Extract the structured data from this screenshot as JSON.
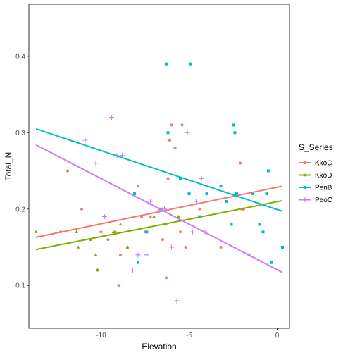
{
  "chart_data": {
    "type": "scatter",
    "xlabel": "Elevation",
    "ylabel": "Total_N",
    "xlim": [
      -14.1,
      0.7
    ],
    "ylim": [
      0.044,
      0.468
    ],
    "x_ticks": [
      -10,
      -5,
      0
    ],
    "y_ticks": [
      0.1,
      0.2,
      0.3,
      0.4
    ],
    "grid": false,
    "legend": {
      "title": "S_Series",
      "position": "right"
    },
    "series": [
      {
        "name": "KkoC",
        "color": "#F8766D",
        "marker": "circle",
        "points": [
          [
            -12.3,
            0.17
          ],
          [
            -11.9,
            0.25
          ],
          [
            -11.1,
            0.2
          ],
          [
            -10.2,
            0.12
          ],
          [
            -10.0,
            0.17
          ],
          [
            -9.6,
            0.16
          ],
          [
            -9.2,
            0.17
          ],
          [
            -9.0,
            0.1
          ],
          [
            -8.9,
            0.14
          ],
          [
            -8.5,
            0.15
          ],
          [
            -8.1,
            0.22
          ],
          [
            -7.9,
            0.23
          ],
          [
            -7.7,
            0.19
          ],
          [
            -7.5,
            0.17
          ],
          [
            -6.7,
            0.2
          ],
          [
            -6.5,
            0.16
          ],
          [
            -6.3,
            0.11
          ],
          [
            -6.2,
            0.24
          ],
          [
            -6.1,
            0.29
          ],
          [
            -5.8,
            0.28
          ],
          [
            -5.5,
            0.17
          ],
          [
            -5.4,
            0.31
          ],
          [
            -5.2,
            0.15
          ],
          [
            -4.4,
            0.2
          ],
          [
            -3.2,
            0.15
          ],
          [
            -2.1,
            0.26
          ],
          [
            -2.0,
            0.2
          ],
          [
            -1.9,
            0.2
          ],
          [
            -6.0,
            0.31
          ],
          [
            -7.2,
            0.19
          ]
        ],
        "fit": {
          "x": [
            -13.7,
            0.3
          ],
          "y": [
            0.163,
            0.23
          ]
        }
      },
      {
        "name": "KkoD",
        "color": "#7CAE00",
        "marker": "triangle",
        "points": [
          [
            -13.7,
            0.17
          ],
          [
            -11.4,
            0.17
          ],
          [
            -11.3,
            0.15
          ],
          [
            -10.6,
            0.16
          ],
          [
            -10.3,
            0.14
          ],
          [
            -10.2,
            0.12
          ],
          [
            -9.3,
            0.17
          ],
          [
            -8.9,
            0.18
          ],
          [
            -8.5,
            0.15
          ],
          [
            -7.0,
            0.19
          ],
          [
            -6.3,
            0.18
          ],
          [
            -5.6,
            0.19
          ]
        ],
        "fit": {
          "x": [
            -13.7,
            0.3
          ],
          "y": [
            0.147,
            0.211
          ]
        }
      },
      {
        "name": "PenB",
        "color": "#00BFC4",
        "marker": "square",
        "points": [
          [
            -8.1,
            0.22
          ],
          [
            -7.9,
            0.13
          ],
          [
            -7.4,
            0.17
          ],
          [
            -6.6,
            0.2
          ],
          [
            -6.3,
            0.39
          ],
          [
            -6.2,
            0.3
          ],
          [
            -5.5,
            0.24
          ],
          [
            -5.0,
            0.22
          ],
          [
            -4.9,
            0.39
          ],
          [
            -4.4,
            0.19
          ],
          [
            -4.0,
            0.22
          ],
          [
            -3.2,
            0.23
          ],
          [
            -2.9,
            0.21
          ],
          [
            -2.6,
            0.18
          ],
          [
            -2.5,
            0.31
          ],
          [
            -2.4,
            0.3
          ],
          [
            -2.3,
            0.22
          ],
          [
            -1.6,
            0.14
          ],
          [
            -1.4,
            0.22
          ],
          [
            -1.0,
            0.18
          ],
          [
            -0.8,
            0.17
          ],
          [
            -0.5,
            0.25
          ],
          [
            -0.3,
            0.13
          ],
          [
            0.3,
            0.15
          ],
          [
            -0.6,
            0.22
          ]
        ],
        "fit": {
          "x": [
            -13.7,
            0.3
          ],
          "y": [
            0.305,
            0.197
          ]
        }
      },
      {
        "name": "PeoC",
        "color": "#C77CFF",
        "marker": "plus",
        "points": [
          [
            -10.9,
            0.29
          ],
          [
            -10.3,
            0.26
          ],
          [
            -9.8,
            0.19
          ],
          [
            -9.4,
            0.32
          ],
          [
            -9.1,
            0.27
          ],
          [
            -8.8,
            0.27
          ],
          [
            -8.2,
            0.12
          ],
          [
            -7.9,
            0.14
          ],
          [
            -7.4,
            0.14
          ],
          [
            -7.2,
            0.21
          ],
          [
            -6.4,
            0.2
          ],
          [
            -6.0,
            0.15
          ],
          [
            -5.7,
            0.08
          ],
          [
            -5.1,
            0.3
          ],
          [
            -4.8,
            0.17
          ],
          [
            -4.6,
            0.21
          ],
          [
            -4.3,
            0.24
          ],
          [
            -4.1,
            0.17
          ]
        ],
        "fit": {
          "x": [
            -13.7,
            0.3
          ],
          "y": [
            0.284,
            0.117
          ]
        }
      }
    ]
  }
}
